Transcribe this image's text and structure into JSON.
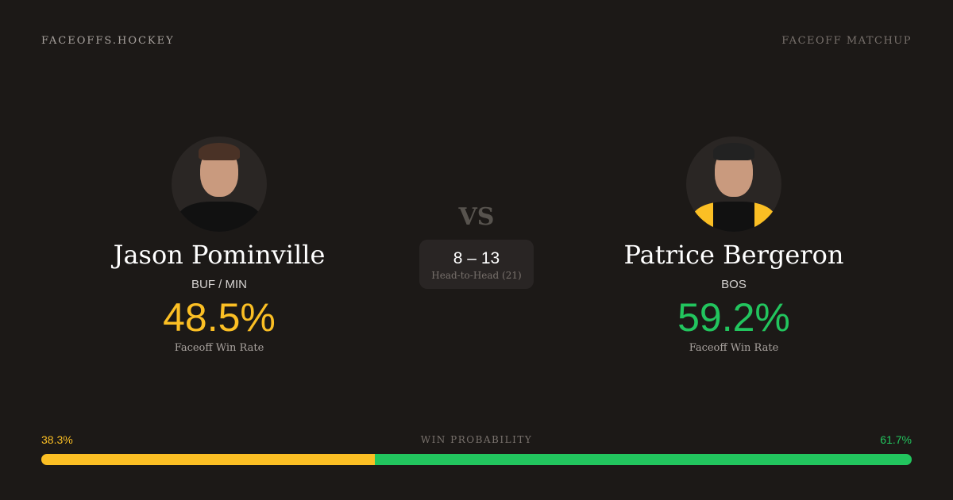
{
  "header": {
    "brand": "FACEOFFS.HOCKEY",
    "tag": "FACEOFF MATCHUP"
  },
  "players": [
    {
      "name": "Jason Pominville",
      "team": "BUF / MIN",
      "rate": "48.5%",
      "rate_label": "Faceoff Win Rate",
      "color": "#fbbf24"
    },
    {
      "name": "Patrice Bergeron",
      "team": "BOS",
      "rate": "59.2%",
      "rate_label": "Faceoff Win Rate",
      "color": "#22c55e"
    }
  ],
  "vs": "VS",
  "head_to_head": {
    "score": "8 – 13",
    "label": "Head-to-Head (21)"
  },
  "win_probability": {
    "label": "WIN PROBABILITY",
    "left": "38.3%",
    "right": "61.7%",
    "left_value": 38.3,
    "right_value": 61.7
  }
}
